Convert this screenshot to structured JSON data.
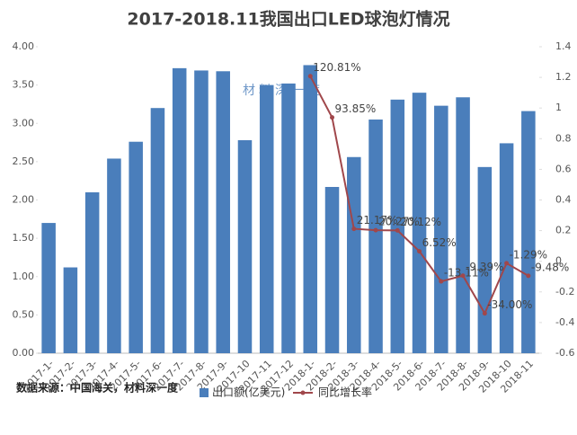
{
  "chart_data": {
    "type": "bar_line",
    "title": "2017-2018.11我国出口LED球泡灯情况",
    "watermark": "材料深一度",
    "source": "数据来源：中国海关，材料深一度",
    "categories": [
      "2017-1-",
      "2017-2-",
      "2017-3-",
      "2017-4-",
      "2017-5-",
      "2017-6-",
      "2017-7-",
      "2017-8-",
      "2017-9-",
      "2017-10",
      "2017-11",
      "2017-12",
      "2018-1-",
      "2018-2-",
      "2018-3-",
      "2018-4-",
      "2018-5-",
      "2018-6-",
      "2018-7-",
      "2018-8-",
      "2018-9-",
      "2018-10",
      "2018-11"
    ],
    "series": [
      {
        "name": "出口额(亿美元)",
        "type": "bar",
        "color": "#4a7ebb",
        "values": [
          1.7,
          1.12,
          2.1,
          2.54,
          2.76,
          3.2,
          3.72,
          3.69,
          3.68,
          2.78,
          3.5,
          3.52,
          3.76,
          2.17,
          2.56,
          3.05,
          3.31,
          3.4,
          3.23,
          3.34,
          2.43,
          2.74,
          3.16
        ]
      },
      {
        "name": "同比增长率",
        "type": "line",
        "axis": "y2",
        "color": "#a0474b",
        "values": [
          null,
          null,
          null,
          null,
          null,
          null,
          null,
          null,
          null,
          null,
          null,
          null,
          1.2081,
          0.9385,
          0.2117,
          0.2027,
          0.2012,
          0.0652,
          -0.1311,
          -0.0939,
          -0.34,
          -0.0129,
          -0.0948
        ],
        "value_labels": [
          null,
          null,
          null,
          null,
          null,
          null,
          null,
          null,
          null,
          null,
          null,
          null,
          "120.81%",
          "93.85%",
          "21.17%",
          "20.27%",
          "20.12%",
          "6.52%",
          "-13.11%",
          "-9.39%",
          "-34.00%",
          "-1.29%",
          "-9.48%"
        ]
      }
    ],
    "ylim": [
      0,
      4
    ],
    "yticks": [
      {
        "value": 0,
        "label": "0.00"
      },
      {
        "value": 0.5,
        "label": "0.50"
      },
      {
        "value": 1,
        "label": "1.00"
      },
      {
        "value": 1.5,
        "label": "1.50"
      },
      {
        "value": 2,
        "label": "2.00"
      },
      {
        "value": 2.5,
        "label": "2.50"
      },
      {
        "value": 3,
        "label": "3.00"
      },
      {
        "value": 3.5,
        "label": "3.50"
      },
      {
        "value": 4,
        "label": "4.00"
      }
    ],
    "y2lim": [
      -0.6,
      1.4
    ],
    "y2ticks": [
      -0.6,
      -0.4,
      -0.2,
      0,
      0.2,
      0.4,
      0.6,
      0.8,
      1,
      1.2,
      1.4
    ],
    "legend": "bottom"
  }
}
